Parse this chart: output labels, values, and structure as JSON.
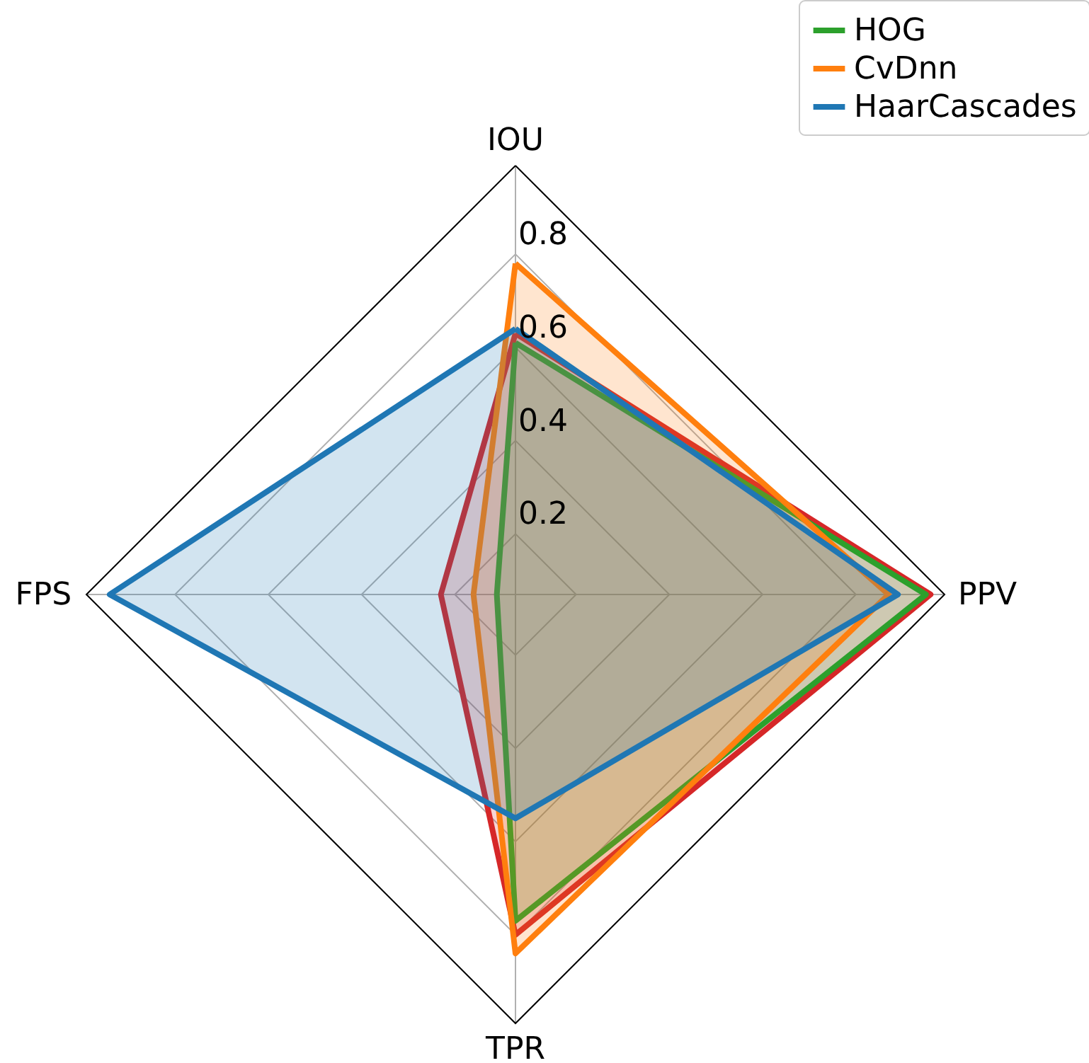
{
  "chart_data": {
    "type": "radar",
    "categories": [
      "IOU",
      "PPV",
      "TPR",
      "FPS"
    ],
    "ylim": [
      0.07,
      0.99
    ],
    "yticks": [
      0.2,
      0.4,
      0.6,
      0.8
    ],
    "grid": true,
    "legend": "top right",
    "series": [
      {
        "color": "#d62728",
        "values": [
          0.63,
          0.96,
          0.8,
          0.23
        ]
      },
      {
        "name": "HOG",
        "color": "#2ca02c",
        "values": [
          0.61,
          0.95,
          0.77,
          0.11
        ]
      },
      {
        "name": "CvDnn",
        "color": "#ff7f0e",
        "values": [
          0.78,
          0.87,
          0.84,
          0.16
        ]
      },
      {
        "name": "HaarCascades",
        "color": "#1f77b4",
        "values": [
          0.64,
          0.89,
          0.55,
          0.94
        ]
      }
    ]
  }
}
